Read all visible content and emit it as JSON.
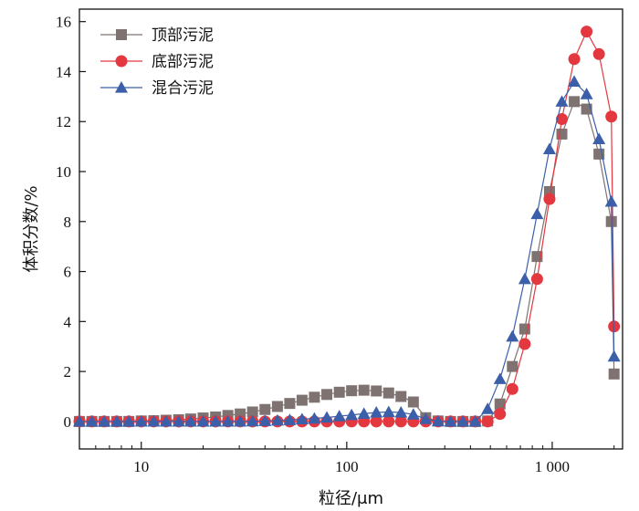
{
  "chart_data": {
    "type": "line",
    "xscale": "log",
    "xlabel": "粒径/μm",
    "ylabel": "体积分数/%",
    "xlim": [
      5,
      2200
    ],
    "ylim": [
      -1.1,
      16.5
    ],
    "x_ticks": [
      10,
      100,
      1000
    ],
    "x_tick_labels": [
      "10",
      "100",
      "1 000"
    ],
    "y_ticks": [
      0,
      2,
      4,
      6,
      8,
      10,
      12,
      14,
      16
    ],
    "y_tick_labels": [
      "0",
      "2",
      "4",
      "6",
      "8",
      "10",
      "12",
      "14",
      "16"
    ],
    "grid": false,
    "legend_position": "top-left",
    "series": [
      {
        "name": "顶部污泥",
        "color": "#7f7372",
        "marker": "square",
        "x": [
          5,
          5.75,
          6.6,
          7.6,
          8.7,
          10,
          11.5,
          13.2,
          15.2,
          17.4,
          20,
          23,
          26.4,
          30.3,
          34.8,
          40,
          46,
          52.8,
          60.6,
          69.6,
          80,
          92,
          105.6,
          121.3,
          139.3,
          160,
          183.7,
          211,
          242.4,
          278.4,
          320,
          367.6,
          422.2,
          485,
          557.1,
          640,
          735.2,
          844.4,
          970,
          1114.2,
          1280,
          1470.3,
          1688.9,
          1940,
          2000
        ],
        "y": [
          0,
          0,
          0,
          0,
          0,
          0.02,
          0.03,
          0.05,
          0.07,
          0.1,
          0.14,
          0.18,
          0.24,
          0.3,
          0.38,
          0.48,
          0.6,
          0.72,
          0.85,
          0.97,
          1.08,
          1.17,
          1.23,
          1.25,
          1.22,
          1.14,
          1.0,
          0.78,
          0.15,
          0.02,
          0,
          0,
          0,
          0.02,
          0.7,
          2.2,
          3.7,
          6.6,
          9.2,
          11.5,
          12.8,
          12.5,
          10.7,
          8.0,
          1.9
        ],
        "markers_only_on": "all"
      },
      {
        "name": "底部污泥",
        "color": "#e3383f",
        "marker": "circle",
        "x": [
          5,
          5.75,
          6.6,
          7.6,
          8.7,
          10,
          11.5,
          13.2,
          15.2,
          17.4,
          20,
          23,
          26.4,
          30.3,
          34.8,
          40,
          46,
          52.8,
          60.6,
          69.6,
          80,
          92,
          105.6,
          121.3,
          139.3,
          160,
          183.7,
          211,
          242.4,
          278.4,
          320,
          367.6,
          422.2,
          485,
          557.1,
          640,
          735.2,
          844.4,
          970,
          1114.2,
          1280,
          1470.3,
          1688.9,
          1940,
          2000
        ],
        "y": [
          0,
          0,
          0,
          0,
          0,
          0,
          0,
          0,
          0,
          0,
          0,
          0,
          0,
          0,
          0,
          0,
          0,
          0,
          0,
          0,
          0,
          0,
          0,
          0,
          0,
          0,
          0,
          0,
          0,
          0,
          0,
          0,
          0,
          0,
          0.3,
          1.3,
          3.1,
          5.7,
          8.9,
          12.1,
          14.5,
          15.6,
          14.7,
          12.2,
          3.8
        ]
      },
      {
        "name": "混合污泥",
        "color": "#3b5fa8",
        "marker": "triangle",
        "x": [
          5,
          5.75,
          6.6,
          7.6,
          8.7,
          10,
          11.5,
          13.2,
          15.2,
          17.4,
          20,
          23,
          26.4,
          30.3,
          34.8,
          40,
          46,
          52.8,
          60.6,
          69.6,
          80,
          92,
          105.6,
          121.3,
          139.3,
          160,
          183.7,
          211,
          242.4,
          278.4,
          320,
          367.6,
          422.2,
          485,
          557.1,
          640,
          735.2,
          844.4,
          970,
          1114.2,
          1280,
          1470.3,
          1688.9,
          1940,
          2000
        ],
        "y": [
          0,
          0,
          0,
          0,
          0,
          0,
          0,
          0,
          0,
          0,
          0,
          0,
          0,
          0,
          0.01,
          0.02,
          0.04,
          0.06,
          0.09,
          0.12,
          0.16,
          0.21,
          0.26,
          0.31,
          0.36,
          0.38,
          0.36,
          0.28,
          0.1,
          0.01,
          0,
          0,
          0,
          0.5,
          1.7,
          3.4,
          5.7,
          8.3,
          10.9,
          12.8,
          13.6,
          13.1,
          11.3,
          8.8,
          2.6
        ]
      }
    ]
  }
}
